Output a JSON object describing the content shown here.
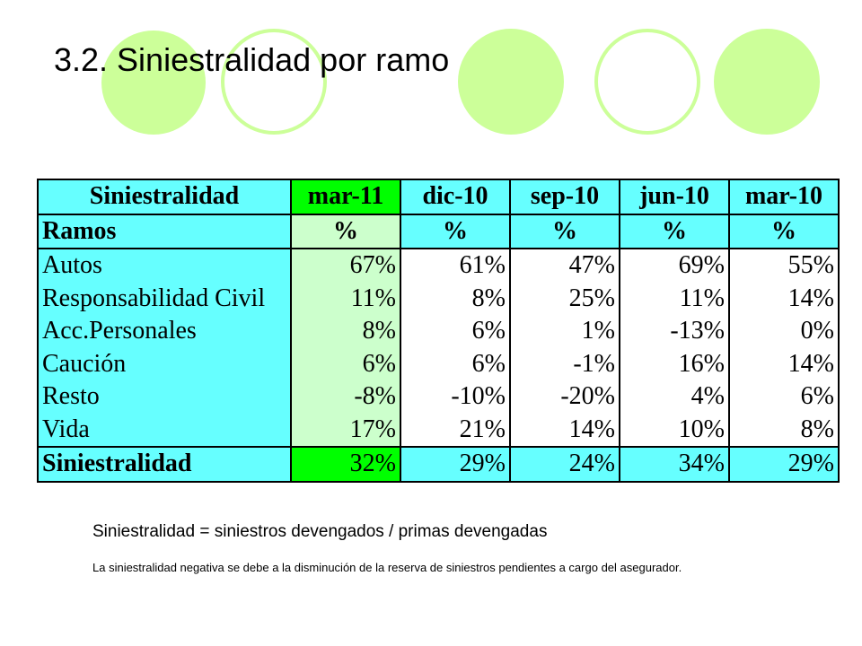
{
  "title": "3.2. Siniestralidad  por ramo",
  "colors": {
    "circle": "#ccff99",
    "label_bg": "#66ffff",
    "current_col_bg": "#ccffcc",
    "highlight_total": "#00ff00"
  },
  "table": {
    "header": [
      "Siniestralidad",
      "mar-11",
      "dic-10",
      "sep-10",
      "jun-10",
      "mar-10"
    ],
    "subheader": [
      "Ramos",
      "%",
      "%",
      "%",
      "%",
      "%"
    ],
    "rows": [
      {
        "label": "Autos",
        "values": [
          "67%",
          "61%",
          "47%",
          "69%",
          "55%"
        ]
      },
      {
        "label": "Responsabilidad Civil",
        "values": [
          "11%",
          "8%",
          "25%",
          "11%",
          "14%"
        ]
      },
      {
        "label": "Acc.Personales",
        "values": [
          "8%",
          "6%",
          "1%",
          "-13%",
          "0%"
        ]
      },
      {
        "label": "Caución",
        "values": [
          "6%",
          "6%",
          "-1%",
          "16%",
          "14%"
        ]
      },
      {
        "label": "Resto",
        "values": [
          "-8%",
          "-10%",
          "-20%",
          "4%",
          "6%"
        ]
      },
      {
        "label": "Vida",
        "values": [
          "17%",
          "21%",
          "14%",
          "10%",
          "8%"
        ]
      }
    ],
    "total": {
      "label": "Siniestralidad",
      "values": [
        "32%",
        "29%",
        "24%",
        "34%",
        "29%"
      ]
    }
  },
  "formula": "Siniestralidad = siniestros devengados / primas devengadas",
  "note": "La siniestralidad negativa se debe a la disminución de la reserva de siniestros pendientes a cargo del asegurador."
}
